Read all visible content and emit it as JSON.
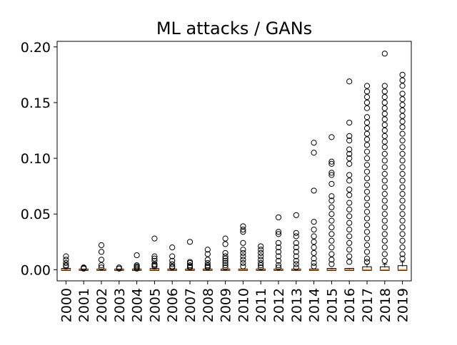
{
  "chart_data": {
    "type": "boxplot",
    "title": "ML attacks / GANs",
    "xlabel": "",
    "ylabel": "",
    "ylim": [
      -0.01,
      0.205
    ],
    "yticks": [
      0.0,
      0.05,
      0.1,
      0.15,
      0.2
    ],
    "ytick_labels": [
      "0.00",
      "0.05",
      "0.10",
      "0.15",
      "0.20"
    ],
    "grid": false,
    "legend": "none",
    "colors": {
      "median": "#ff7f0e",
      "box": "#000000",
      "flier": "#000000"
    },
    "categories": [
      "2000",
      "2001",
      "2002",
      "2003",
      "2004",
      "2005",
      "2006",
      "2007",
      "2008",
      "2009",
      "2010",
      "2011",
      "2012",
      "2013",
      "2014",
      "2015",
      "2016",
      "2017",
      "2018",
      "2019"
    ],
    "boxes": [
      {
        "q1": 0.0,
        "median": 0.0,
        "q3": 0.0005,
        "whislo": 0.0,
        "whishi": 0.001
      },
      {
        "q1": 0.0,
        "median": 0.0,
        "q3": 0.0,
        "whislo": 0.0,
        "whishi": 0.0
      },
      {
        "q1": 0.0,
        "median": 0.0,
        "q3": 0.0,
        "whislo": 0.0,
        "whishi": 0.0
      },
      {
        "q1": 0.0,
        "median": 0.0,
        "q3": 0.0,
        "whislo": 0.0,
        "whishi": 0.0
      },
      {
        "q1": 0.0,
        "median": 0.0,
        "q3": 0.0,
        "whislo": 0.0,
        "whishi": 0.0
      },
      {
        "q1": 0.0,
        "median": 0.0,
        "q3": 0.0004,
        "whislo": 0.0,
        "whishi": 0.001
      },
      {
        "q1": 0.0,
        "median": 0.0,
        "q3": 0.0,
        "whislo": 0.0,
        "whishi": 0.0
      },
      {
        "q1": 0.0,
        "median": 0.0,
        "q3": 0.0,
        "whislo": 0.0,
        "whishi": 0.0
      },
      {
        "q1": 0.0,
        "median": 0.0,
        "q3": 0.0,
        "whislo": 0.0,
        "whishi": 0.0
      },
      {
        "q1": 0.0,
        "median": 0.0,
        "q3": 0.0,
        "whislo": 0.0,
        "whishi": 0.0
      },
      {
        "q1": 0.0,
        "median": 0.0,
        "q3": 0.0,
        "whislo": 0.0,
        "whishi": 0.0
      },
      {
        "q1": 0.0,
        "median": 0.0,
        "q3": 0.0,
        "whislo": 0.0,
        "whishi": 0.0
      },
      {
        "q1": 0.0,
        "median": 0.0,
        "q3": 0.0,
        "whislo": 0.0,
        "whishi": 0.0
      },
      {
        "q1": 0.0,
        "median": 0.0,
        "q3": 0.0,
        "whislo": 0.0,
        "whishi": 0.0
      },
      {
        "q1": 0.0,
        "median": 0.0,
        "q3": 0.0,
        "whislo": 0.0,
        "whishi": 0.0
      },
      {
        "q1": 0.0,
        "median": 0.0,
        "q3": 0.0005,
        "whislo": 0.0,
        "whishi": 0.0012
      },
      {
        "q1": 0.0,
        "median": 0.0,
        "q3": 0.0005,
        "whislo": 0.0,
        "whishi": 0.0012
      },
      {
        "q1": 0.0,
        "median": 0.0,
        "q3": 0.002,
        "whislo": 0.0,
        "whishi": 0.005
      },
      {
        "q1": 0.0,
        "median": 0.0,
        "q3": 0.002,
        "whislo": 0.0,
        "whishi": 0.005
      },
      {
        "q1": 0.0,
        "median": 0.0,
        "q3": 0.003,
        "whislo": 0.0,
        "whishi": 0.007
      }
    ],
    "fliers": [
      [
        0.012,
        0.009,
        0.006,
        0.004,
        0.003
      ],
      [
        0.002,
        0.001,
        0.0015
      ],
      [
        0.022,
        0.016,
        0.009,
        0.004,
        0.002
      ],
      [
        0.002,
        0.001
      ],
      [
        0.013,
        0.004,
        0.003,
        0.002,
        0.001
      ],
      [
        0.028,
        0.012,
        0.01,
        0.008,
        0.005,
        0.004,
        0.003
      ],
      [
        0.02,
        0.012,
        0.008,
        0.005,
        0.003,
        0.002
      ],
      [
        0.025,
        0.007,
        0.006,
        0.004,
        0.003,
        0.002
      ],
      [
        0.018,
        0.014,
        0.009,
        0.006,
        0.004,
        0.003,
        0.002
      ],
      [
        0.028,
        0.023,
        0.015,
        0.012,
        0.01,
        0.008,
        0.006,
        0.004,
        0.002
      ],
      [
        0.039,
        0.036,
        0.034,
        0.024,
        0.018,
        0.015,
        0.012,
        0.009,
        0.006,
        0.003
      ],
      [
        0.021,
        0.018,
        0.015,
        0.012,
        0.009,
        0.006,
        0.004,
        0.002
      ],
      [
        0.047,
        0.034,
        0.032,
        0.024,
        0.02,
        0.016,
        0.012,
        0.008,
        0.004,
        0.002
      ],
      [
        0.049,
        0.033,
        0.03,
        0.024,
        0.02,
        0.016,
        0.012,
        0.008,
        0.005,
        0.002
      ],
      [
        0.114,
        0.105,
        0.071,
        0.043,
        0.036,
        0.03,
        0.025,
        0.02,
        0.015,
        0.01,
        0.006,
        0.003
      ],
      [
        0.119,
        0.097,
        0.095,
        0.087,
        0.085,
        0.077,
        0.066,
        0.062,
        0.056,
        0.05,
        0.044,
        0.038,
        0.032,
        0.026,
        0.02,
        0.014,
        0.009,
        0.005
      ],
      [
        0.169,
        0.132,
        0.12,
        0.116,
        0.108,
        0.104,
        0.1,
        0.095,
        0.085,
        0.08,
        0.072,
        0.067,
        0.06,
        0.054,
        0.048,
        0.042,
        0.036,
        0.03,
        0.024,
        0.018,
        0.012,
        0.007
      ],
      [
        0.165,
        0.16,
        0.155,
        0.15,
        0.145,
        0.137,
        0.132,
        0.127,
        0.122,
        0.117,
        0.112,
        0.106,
        0.1,
        0.094,
        0.088,
        0.082,
        0.076,
        0.07,
        0.064,
        0.058,
        0.052,
        0.046,
        0.04,
        0.034,
        0.028,
        0.022,
        0.016,
        0.01,
        0.007
      ],
      [
        0.194,
        0.165,
        0.16,
        0.155,
        0.15,
        0.145,
        0.14,
        0.135,
        0.13,
        0.125,
        0.12,
        0.115,
        0.11,
        0.104,
        0.098,
        0.092,
        0.086,
        0.08,
        0.074,
        0.068,
        0.062,
        0.056,
        0.05,
        0.044,
        0.038,
        0.032,
        0.026,
        0.02,
        0.014,
        0.008
      ],
      [
        0.175,
        0.17,
        0.165,
        0.158,
        0.153,
        0.148,
        0.143,
        0.138,
        0.133,
        0.128,
        0.122,
        0.116,
        0.11,
        0.104,
        0.098,
        0.092,
        0.086,
        0.08,
        0.074,
        0.068,
        0.062,
        0.056,
        0.05,
        0.044,
        0.038,
        0.032,
        0.026,
        0.02,
        0.014,
        0.01
      ]
    ]
  }
}
